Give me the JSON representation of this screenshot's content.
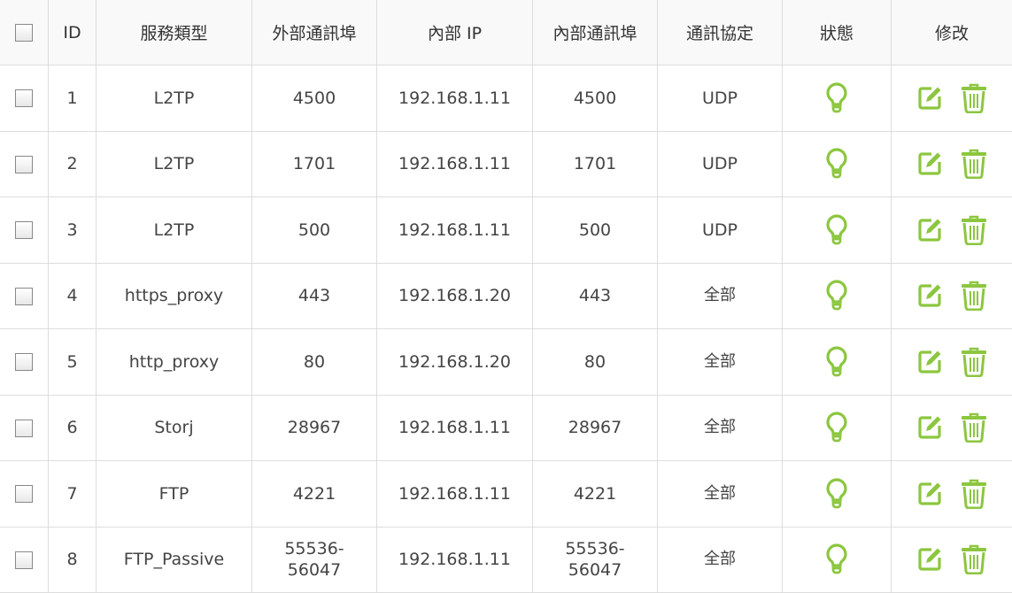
{
  "accent_color": "#8cc63f",
  "headers": [
    "ID",
    "服務類型",
    "外部通訊埠",
    "內部 IP",
    "內部通訊埠",
    "通訊協定",
    "狀態",
    "修改"
  ],
  "rows": [
    {
      "id": "1",
      "service": "L2TP",
      "ext_port": "4500",
      "ip": "192.168.1.11",
      "int_port": "4500",
      "protocol": "UDP",
      "status": "enabled"
    },
    {
      "id": "2",
      "service": "L2TP",
      "ext_port": "1701",
      "ip": "192.168.1.11",
      "int_port": "1701",
      "protocol": "UDP",
      "status": "enabled"
    },
    {
      "id": "3",
      "service": "L2TP",
      "ext_port": "500",
      "ip": "192.168.1.11",
      "int_port": "500",
      "protocol": "UDP",
      "status": "enabled"
    },
    {
      "id": "4",
      "service": "https_proxy",
      "ext_port": "443",
      "ip": "192.168.1.20",
      "int_port": "443",
      "protocol": "全部",
      "status": "enabled"
    },
    {
      "id": "5",
      "service": "http_proxy",
      "ext_port": "80",
      "ip": "192.168.1.20",
      "int_port": "80",
      "protocol": "全部",
      "status": "enabled"
    },
    {
      "id": "6",
      "service": "Storj",
      "ext_port": "28967",
      "ip": "192.168.1.11",
      "int_port": "28967",
      "protocol": "全部",
      "status": "enabled"
    },
    {
      "id": "7",
      "service": "FTP",
      "ext_port": "4221",
      "ip": "192.168.1.11",
      "int_port": "4221",
      "protocol": "全部",
      "status": "enabled"
    },
    {
      "id": "8",
      "service": "FTP_Passive",
      "ext_port": "55536-\n56047",
      "ip": "192.168.1.11",
      "int_port": "55536-\n56047",
      "protocol": "全部",
      "status": "enabled"
    }
  ],
  "icons": {
    "status": "lightbulb-icon",
    "edit": "edit-icon",
    "delete": "trash-icon"
  }
}
